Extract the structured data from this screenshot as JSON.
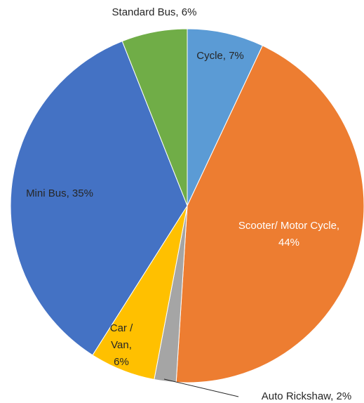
{
  "chart_data": {
    "type": "pie",
    "values": [
      7,
      44,
      2,
      6,
      35,
      6
    ],
    "value_labels": [
      "Cycle, 7%",
      "Scooter/ Motor Cycle, 44%",
      "Auto Rickshaw, 2%",
      "Car / Van, 6%",
      "Mini Bus, 35%",
      "Standard Bus, 6%"
    ],
    "colors": [
      "#5b9bd5",
      "#ed7d31",
      "#a5a5a5",
      "#ffc000",
      "#4472c4",
      "#70ad47"
    ]
  }
}
